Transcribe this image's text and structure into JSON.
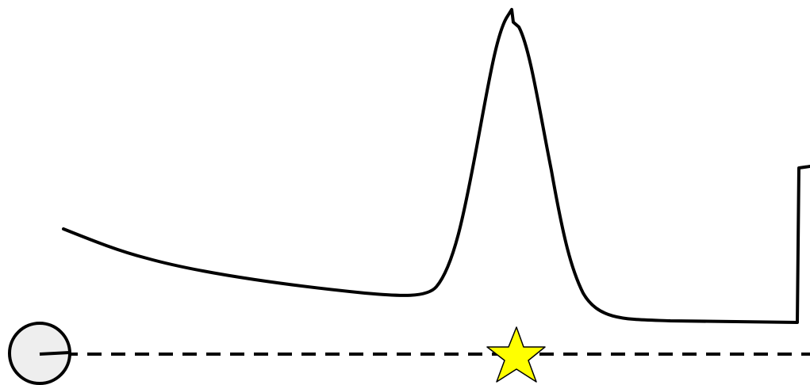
{
  "scene": {
    "background_color": "#ffffff",
    "stroke_color": "#000000",
    "player": {
      "icon": "ball-icon",
      "fill_color": "#eeeeee",
      "aim_line": "dashed"
    },
    "goal": {
      "icon": "star-icon",
      "fill_color": "#ffff00"
    },
    "terrain": {
      "shape": "hand-drawn-curve"
    }
  }
}
